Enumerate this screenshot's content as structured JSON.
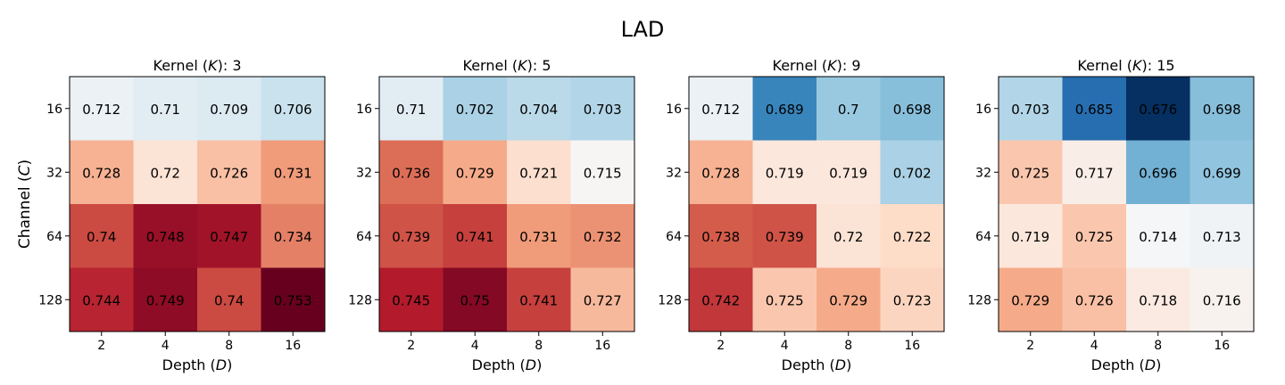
{
  "figure": {
    "title": "LAD",
    "ylabel_prefix": "Channel (",
    "ylabel_var": "C",
    "ylabel_suffix": ")",
    "colormap": "RdBu_r",
    "colors": {
      "low": "#053061",
      "mid": "#f7f7f7",
      "high": "#67001f"
    }
  },
  "chart_data": [
    {
      "type": "heatmap",
      "title_prefix": "Kernel (",
      "title_var": "K",
      "title_suffix": "): 3",
      "xlabel_prefix": "Depth (",
      "xlabel_var": "D",
      "xlabel_suffix": ")",
      "x": [
        "2",
        "4",
        "8",
        "16"
      ],
      "y": [
        "16",
        "32",
        "64",
        "128"
      ],
      "values": [
        [
          0.712,
          0.71,
          0.709,
          0.706
        ],
        [
          0.728,
          0.72,
          0.726,
          0.731
        ],
        [
          0.74,
          0.748,
          0.747,
          0.734
        ],
        [
          0.744,
          0.749,
          0.74,
          0.753
        ]
      ],
      "labels": [
        [
          "0.712",
          "0.71",
          "0.709",
          "0.706"
        ],
        [
          "0.728",
          "0.72",
          "0.726",
          "0.731"
        ],
        [
          "0.74",
          "0.748",
          "0.747",
          "0.734"
        ],
        [
          "0.744",
          "0.749",
          "0.74",
          "0.753"
        ]
      ]
    },
    {
      "type": "heatmap",
      "title_prefix": "Kernel (",
      "title_var": "K",
      "title_suffix": "): 5",
      "xlabel_prefix": "Depth (",
      "xlabel_var": "D",
      "xlabel_suffix": ")",
      "x": [
        "2",
        "4",
        "8",
        "16"
      ],
      "y": [
        "16",
        "32",
        "64",
        "128"
      ],
      "values": [
        [
          0.71,
          0.702,
          0.704,
          0.703
        ],
        [
          0.736,
          0.729,
          0.721,
          0.715
        ],
        [
          0.739,
          0.741,
          0.731,
          0.732
        ],
        [
          0.745,
          0.75,
          0.741,
          0.727
        ]
      ],
      "labels": [
        [
          "0.71",
          "0.702",
          "0.704",
          "0.703"
        ],
        [
          "0.736",
          "0.729",
          "0.721",
          "0.715"
        ],
        [
          "0.739",
          "0.741",
          "0.731",
          "0.732"
        ],
        [
          "0.745",
          "0.75",
          "0.741",
          "0.727"
        ]
      ]
    },
    {
      "type": "heatmap",
      "title_prefix": "Kernel (",
      "title_var": "K",
      "title_suffix": "): 9",
      "xlabel_prefix": "Depth (",
      "xlabel_var": "D",
      "xlabel_suffix": ")",
      "x": [
        "2",
        "4",
        "8",
        "16"
      ],
      "y": [
        "16",
        "32",
        "64",
        "128"
      ],
      "values": [
        [
          0.712,
          0.689,
          0.7,
          0.698
        ],
        [
          0.728,
          0.719,
          0.719,
          0.702
        ],
        [
          0.738,
          0.739,
          0.72,
          0.722
        ],
        [
          0.742,
          0.725,
          0.729,
          0.723
        ]
      ],
      "labels": [
        [
          "0.712",
          "0.689",
          "0.7",
          "0.698"
        ],
        [
          "0.728",
          "0.719",
          "0.719",
          "0.702"
        ],
        [
          "0.738",
          "0.739",
          "0.72",
          "0.722"
        ],
        [
          "0.742",
          "0.725",
          "0.729",
          "0.723"
        ]
      ]
    },
    {
      "type": "heatmap",
      "title_prefix": "Kernel (",
      "title_var": "K",
      "title_suffix": "): 15",
      "xlabel_prefix": "Depth (",
      "xlabel_var": "D",
      "xlabel_suffix": ")",
      "x": [
        "2",
        "4",
        "8",
        "16"
      ],
      "y": [
        "16",
        "32",
        "64",
        "128"
      ],
      "values": [
        [
          0.703,
          0.685,
          0.676,
          0.698
        ],
        [
          0.725,
          0.717,
          0.696,
          0.699
        ],
        [
          0.719,
          0.725,
          0.714,
          0.713
        ],
        [
          0.729,
          0.726,
          0.718,
          0.716
        ]
      ],
      "labels": [
        [
          "0.703",
          "0.685",
          "0.676",
          "0.698"
        ],
        [
          "0.725",
          "0.717",
          "0.696",
          "0.699"
        ],
        [
          "0.719",
          "0.725",
          "0.714",
          "0.713"
        ],
        [
          "0.729",
          "0.726",
          "0.718",
          "0.716"
        ]
      ]
    }
  ]
}
